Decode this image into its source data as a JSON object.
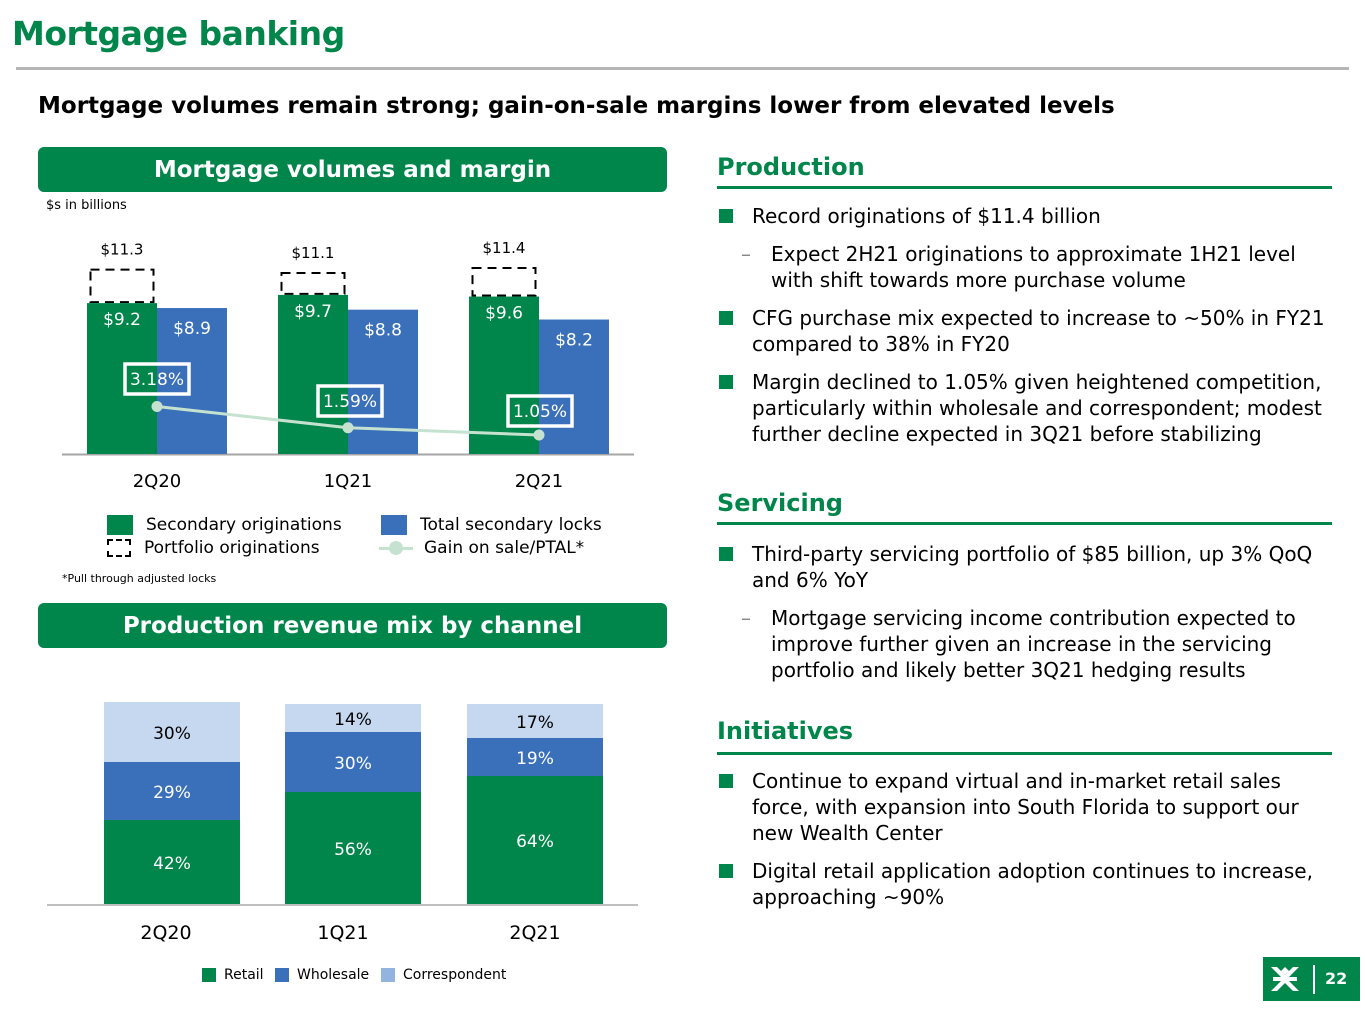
{
  "title": "Mortgage banking",
  "headline": "Mortgage volumes remain strong; gain-on-sale margins lower from elevated levels",
  "left": {
    "volumes_banner": "Mortgage volumes and margin",
    "units": "$s in billions",
    "footnote": "*Pull through adjusted locks",
    "mix_banner": "Production revenue mix by channel",
    "volume_legend": {
      "secondary": "Secondary originations",
      "portfolio": "Portfolio originations",
      "locks": "Total secondary locks",
      "gain": "Gain on sale/PTAL*"
    },
    "mix_legend": {
      "retail": "Retail",
      "wholesale": "Wholesale",
      "correspondent": "Correspondent"
    }
  },
  "colors": {
    "green": "#00854a",
    "blue": "#3a6fba",
    "light_blue": "#c5d8f0",
    "line": "#c5e2d0"
  },
  "chart_data": [
    {
      "type": "bar",
      "categories": [
        "2Q20",
        "1Q21",
        "2Q21"
      ],
      "series": [
        {
          "name": "Secondary originations",
          "values": [
            9.2,
            9.7,
            9.6
          ],
          "labels": [
            "$9.2",
            "$9.7",
            "$9.6"
          ]
        },
        {
          "name": "Portfolio originations",
          "values": [
            11.3,
            11.1,
            11.4
          ],
          "labels": [
            "$11.3",
            "$11.1",
            "$11.4"
          ]
        },
        {
          "name": "Total secondary locks",
          "values": [
            8.9,
            8.8,
            8.2
          ],
          "labels": [
            "$8.9",
            "$8.8",
            "$8.2"
          ]
        },
        {
          "name": "Gain on sale/PTAL*",
          "values": [
            3.18,
            1.59,
            1.05
          ],
          "labels": [
            "3.18%",
            "1.59%",
            "1.05%"
          ]
        }
      ]
    },
    {
      "type": "bar",
      "stacked": true,
      "categories": [
        "2Q20",
        "1Q21",
        "2Q21"
      ],
      "series": [
        {
          "name": "Retail",
          "values": [
            42,
            56,
            64
          ],
          "labels": [
            "42%",
            "56%",
            "64%"
          ]
        },
        {
          "name": "Wholesale",
          "values": [
            29,
            30,
            19
          ],
          "labels": [
            "29%",
            "30%",
            "19%"
          ]
        },
        {
          "name": "Correspondent",
          "values": [
            30,
            14,
            17
          ],
          "labels": [
            "30%",
            "14%",
            "17%"
          ]
        }
      ]
    }
  ],
  "production": {
    "heading": "Production",
    "b1": "Record originations of $11.4 billion",
    "s1": "Expect 2H21 originations to approximate 1H21 level with shift towards more purchase volume",
    "b2": "CFG purchase mix expected to increase to ~50% in FY21 compared to 38% in FY20",
    "b3": "Margin declined to 1.05% given heightened competition, particularly within wholesale and correspondent; modest further decline expected in 3Q21 before stabilizing"
  },
  "servicing": {
    "heading": "Servicing",
    "b1": "Third-party servicing portfolio of $85 billion, up 3% QoQ and 6% YoY",
    "s1": "Mortgage servicing income contribution expected to improve further given an increase in the servicing portfolio and likely better 3Q21 hedging results"
  },
  "initiatives": {
    "heading": "Initiatives",
    "b1": "Continue to expand virtual and in-market retail sales force, with expansion into South Florida to support our new Wealth Center",
    "b2": "Digital retail application adoption continues to increase, approaching ~90%"
  },
  "footer": {
    "page_number": "22",
    "logo_icon": "citizens-logo-icon"
  }
}
